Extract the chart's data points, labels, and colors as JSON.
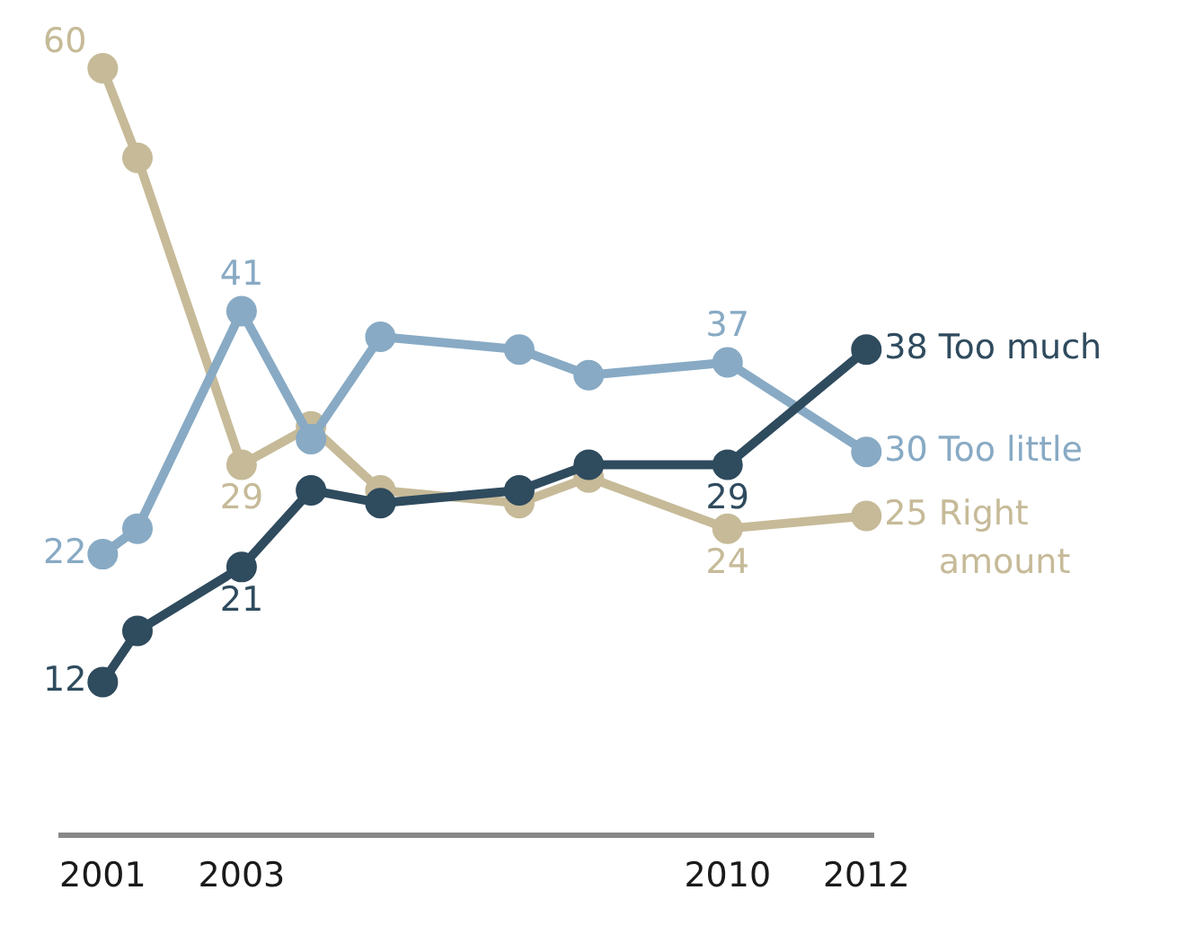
{
  "chart_data": {
    "type": "line",
    "x": [
      2001,
      2001.5,
      2003,
      2004,
      2005,
      2007,
      2008,
      2010,
      2012
    ],
    "xlim": [
      2000.4,
      2012.1
    ],
    "xticks": [
      2001,
      2003,
      2010,
      2012
    ],
    "tick_labels": "x",
    "grid": false,
    "legend": false,
    "marker": "circle",
    "line_style": "solid",
    "series": [
      {
        "name": "Too much",
        "color": "#2f4b5e",
        "values": [
          12,
          16,
          21,
          27,
          26,
          27,
          29,
          29,
          38
        ],
        "value_labels": [
          "12",
          null,
          "21",
          null,
          null,
          null,
          null,
          "29",
          "38"
        ]
      },
      {
        "name": "Too little",
        "color": "#88aac4",
        "values": [
          22,
          24,
          41,
          31,
          39,
          38,
          36,
          37,
          30
        ],
        "value_labels": [
          "22",
          null,
          "41",
          null,
          null,
          null,
          null,
          "37",
          "30"
        ]
      },
      {
        "name": "Right amount",
        "color": "#c6ba98",
        "values": [
          60,
          53,
          29,
          32,
          27,
          26,
          28,
          24,
          25
        ],
        "value_labels": [
          "60",
          null,
          "29",
          null,
          null,
          null,
          null,
          "24",
          "25"
        ]
      }
    ]
  }
}
